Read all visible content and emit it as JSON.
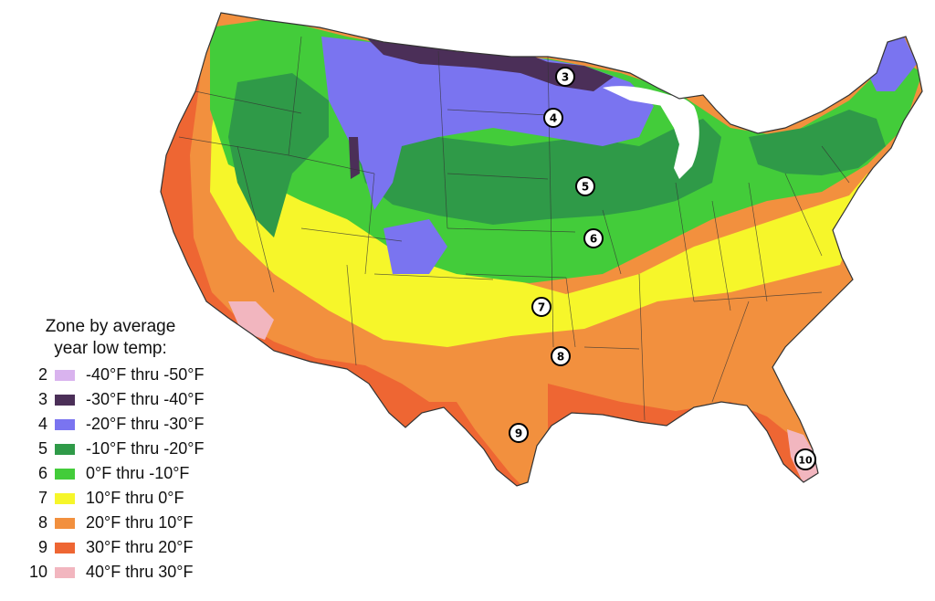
{
  "legend": {
    "title_line1": "Zone by average",
    "title_line2": "year low temp:",
    "zones": [
      {
        "zone": "2",
        "range": "-40°F thru -50°F",
        "color": "#d9b3ee"
      },
      {
        "zone": "3",
        "range": "-30°F thru -40°F",
        "color": "#4b2f58"
      },
      {
        "zone": "4",
        "range": "-20°F thru -30°F",
        "color": "#7a74f0"
      },
      {
        "zone": "5",
        "range": "-10°F thru -20°F",
        "color": "#2f9a48"
      },
      {
        "zone": "6",
        "range": "0°F thru -10°F",
        "color": "#43cc3a"
      },
      {
        "zone": "7",
        "range": "10°F thru 0°F",
        "color": "#f6f62a"
      },
      {
        "zone": "8",
        "range": "20°F thru 10°F",
        "color": "#f2903e"
      },
      {
        "zone": "9",
        "range": "30°F thru 20°F",
        "color": "#ee6633"
      },
      {
        "zone": "10",
        "range": "40°F thru 30°F",
        "color": "#f2b6bf"
      }
    ]
  },
  "map_markers": [
    "3",
    "4",
    "5",
    "6",
    "7",
    "8",
    "9",
    "10"
  ]
}
